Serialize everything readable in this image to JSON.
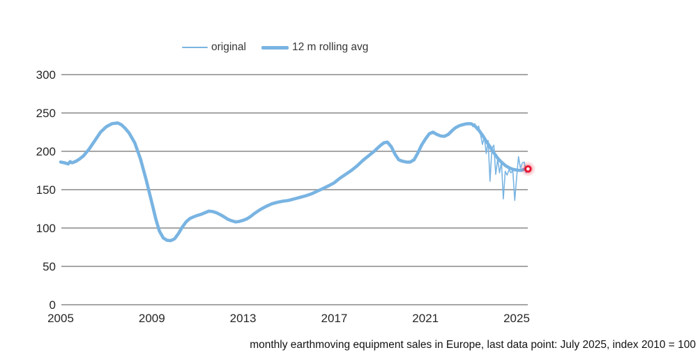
{
  "colors": {
    "line_blue": "#79b4e2",
    "gridline": "#a6a6a6",
    "text": "#262626",
    "marker_red": "#e8112d",
    "background": "#ffffff"
  },
  "chart_data": {
    "type": "line",
    "title": "",
    "caption": "monthly earthmoving equipment sales in Europe, last data point: July 2025, index 2010 = 100",
    "legend": {
      "position": "top",
      "entries": [
        "original",
        "12 m rolling avg"
      ]
    },
    "x_axis": {
      "range": [
        2005.0,
        2025.58
      ],
      "ticks": [
        2005,
        2009,
        2013,
        2017,
        2021,
        2025
      ]
    },
    "y_axis": {
      "range": [
        0,
        300
      ],
      "ticks": [
        0,
        50,
        100,
        150,
        200,
        250,
        300
      ],
      "gridlines": true
    },
    "last_point_marker": {
      "x": 2025.5,
      "value": 177,
      "date_label": "July 2025",
      "color": "#e8112d"
    },
    "series": [
      {
        "name": "original",
        "style": "thin",
        "color": "#79b4e2",
        "x": [
          2005.0,
          2005.17,
          2005.33,
          2005.42,
          2005.5,
          2005.67,
          2005.83,
          2006.0,
          2006.25,
          2006.5,
          2006.75,
          2007.0,
          2007.25,
          2007.5,
          2007.67,
          2007.83,
          2008.0,
          2008.25,
          2008.5,
          2008.75,
          2009.0,
          2009.17,
          2009.33,
          2009.5,
          2009.67,
          2009.83,
          2010.0,
          2010.17,
          2010.33,
          2010.5,
          2010.67,
          2010.83,
          2011.0,
          2011.17,
          2011.33,
          2011.5,
          2011.67,
          2011.83,
          2012.0,
          2012.17,
          2012.33,
          2012.5,
          2012.67,
          2012.83,
          2013.0,
          2013.17,
          2013.33,
          2013.5,
          2013.75,
          2014.0,
          2014.25,
          2014.5,
          2014.75,
          2015.0,
          2015.25,
          2015.5,
          2015.75,
          2016.0,
          2016.25,
          2016.5,
          2016.75,
          2017.0,
          2017.25,
          2017.5,
          2017.75,
          2018.0,
          2018.25,
          2018.5,
          2018.75,
          2019.0,
          2019.17,
          2019.33,
          2019.5,
          2019.67,
          2019.83,
          2020.0,
          2020.17,
          2020.33,
          2020.5,
          2020.67,
          2020.83,
          2021.0,
          2021.17,
          2021.33,
          2021.5,
          2021.67,
          2021.83,
          2022.0,
          2022.17,
          2022.33,
          2022.5,
          2022.67,
          2022.83,
          2023.0,
          2023.083,
          2023.167,
          2023.25,
          2023.333,
          2023.417,
          2023.5,
          2023.583,
          2023.667,
          2023.75,
          2023.833,
          2023.917,
          2024.0,
          2024.083,
          2024.167,
          2024.25,
          2024.333,
          2024.417,
          2024.5,
          2024.583,
          2024.667,
          2024.75,
          2024.833,
          2024.917,
          2025.0,
          2025.083,
          2025.167,
          2025.25,
          2025.333,
          2025.417,
          2025.5
        ],
        "values": [
          186,
          185,
          183.5,
          186.5,
          185,
          187,
          190,
          194,
          203,
          214,
          225,
          232,
          236,
          237,
          234.5,
          230,
          224,
          211,
          190,
          163,
          133,
          112,
          96,
          87,
          84,
          83.5,
          86,
          93,
          101,
          108,
          112.5,
          114.5,
          116.5,
          118,
          120,
          122,
          121.5,
          120,
          117.5,
          114.5,
          111.5,
          109.5,
          108,
          108.5,
          110,
          112,
          115,
          119,
          124,
          128,
          131.5,
          133.5,
          135,
          136,
          138,
          140,
          142,
          144.5,
          148,
          151.5,
          155,
          159,
          165,
          170,
          175,
          181,
          188,
          194,
          200,
          207,
          211,
          212,
          206,
          196,
          189,
          187,
          186,
          186,
          189,
          198,
          208,
          216,
          223,
          225,
          222,
          220,
          219.5,
          222,
          227,
          231,
          233.5,
          235,
          236,
          237,
          232,
          236,
          228,
          233,
          222,
          209,
          219,
          197,
          214,
          161,
          204,
          208,
          170,
          190,
          172,
          186,
          138,
          174,
          169,
          176,
          172,
          175,
          136,
          166,
          193,
          178,
          185,
          186,
          172,
          177
        ]
      },
      {
        "name": "12 m rolling avg",
        "style": "thick",
        "color": "#79b4e2",
        "x": [
          2005.0,
          2005.17,
          2005.33,
          2005.42,
          2005.5,
          2005.67,
          2005.83,
          2006.0,
          2006.25,
          2006.5,
          2006.75,
          2007.0,
          2007.25,
          2007.5,
          2007.67,
          2007.83,
          2008.0,
          2008.25,
          2008.5,
          2008.75,
          2009.0,
          2009.17,
          2009.33,
          2009.5,
          2009.67,
          2009.83,
          2010.0,
          2010.17,
          2010.33,
          2010.5,
          2010.67,
          2010.83,
          2011.0,
          2011.17,
          2011.33,
          2011.5,
          2011.67,
          2011.83,
          2012.0,
          2012.17,
          2012.33,
          2012.5,
          2012.67,
          2012.83,
          2013.0,
          2013.17,
          2013.33,
          2013.5,
          2013.75,
          2014.0,
          2014.25,
          2014.5,
          2014.75,
          2015.0,
          2015.25,
          2015.5,
          2015.75,
          2016.0,
          2016.25,
          2016.5,
          2016.75,
          2017.0,
          2017.25,
          2017.5,
          2017.75,
          2018.0,
          2018.25,
          2018.5,
          2018.75,
          2019.0,
          2019.17,
          2019.33,
          2019.5,
          2019.67,
          2019.83,
          2020.0,
          2020.17,
          2020.33,
          2020.5,
          2020.67,
          2020.83,
          2021.0,
          2021.17,
          2021.33,
          2021.5,
          2021.67,
          2021.83,
          2022.0,
          2022.17,
          2022.33,
          2022.5,
          2022.67,
          2022.83,
          2023.0,
          2023.17,
          2023.33,
          2023.5,
          2023.67,
          2023.83,
          2024.0,
          2024.17,
          2024.33,
          2024.5,
          2024.67,
          2024.83,
          2025.0,
          2025.17,
          2025.33,
          2025.5
        ],
        "values": [
          186,
          185,
          183.5,
          186.5,
          185,
          187,
          190,
          194,
          203,
          214,
          225,
          232,
          236,
          237,
          234.5,
          230,
          224,
          211,
          190,
          163,
          133,
          112,
          96,
          87,
          84,
          83.5,
          86,
          93,
          101,
          108,
          112.5,
          114.5,
          116.5,
          118,
          120,
          122,
          121.5,
          120,
          117.5,
          114.5,
          111.5,
          109.5,
          108,
          108.5,
          110,
          112,
          115,
          119,
          124,
          128,
          131.5,
          133.5,
          135,
          136,
          138,
          140,
          142,
          144.5,
          148,
          151.5,
          155,
          159,
          165,
          170,
          175,
          181,
          188,
          194,
          200,
          207,
          211,
          212,
          206,
          196,
          189,
          187,
          186,
          186,
          189,
          198,
          208,
          216,
          223,
          225,
          222,
          220,
          219.5,
          222,
          227,
          231,
          233.5,
          235,
          236,
          236,
          233,
          228,
          221,
          213,
          206,
          198,
          191,
          186,
          181.5,
          178.5,
          176.5,
          175.5,
          175,
          176.5,
          178
        ]
      }
    ]
  }
}
